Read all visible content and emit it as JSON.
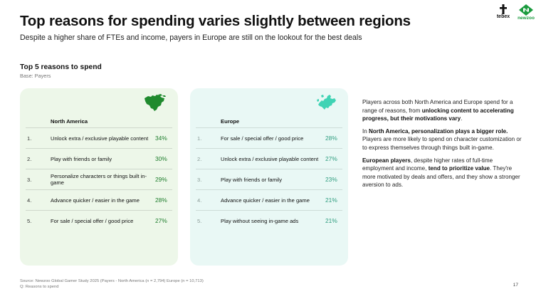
{
  "header": {
    "title": "Top reasons for spending varies slightly between regions",
    "subtitle": "Despite a higher share of FTEs and income, payers in Europe are still on the lookout for the best deals"
  },
  "logos": {
    "tebex": "tebex",
    "newzoo": "newzoo"
  },
  "section": {
    "title": "Top 5 reasons to spend",
    "base": "Base: Payers"
  },
  "north_america": {
    "label": "North America",
    "rows": [
      {
        "num": "1.",
        "reason": "Unlock extra / exclusive playable content",
        "pct": "34%"
      },
      {
        "num": "2.",
        "reason": "Play with friends or family",
        "pct": "30%"
      },
      {
        "num": "3.",
        "reason": "Personalize characters or things built in-game",
        "pct": "29%"
      },
      {
        "num": "4.",
        "reason": "Advance quicker / easier in the game",
        "pct": "28%"
      },
      {
        "num": "5.",
        "reason": "For sale / special offer / good price",
        "pct": "27%"
      }
    ]
  },
  "europe": {
    "label": "Europe",
    "rows": [
      {
        "num": "1.",
        "reason": "For sale / special offer / good price",
        "pct": "28%"
      },
      {
        "num": "2.",
        "reason": "Unlock extra / exclusive playable content",
        "pct": "27%"
      },
      {
        "num": "3.",
        "reason": "Play with friends or family",
        "pct": "23%"
      },
      {
        "num": "4.",
        "reason": "Advance quicker / easier in the game",
        "pct": "21%"
      },
      {
        "num": "5.",
        "reason": "Play without seeing in-game ads",
        "pct": "21%"
      }
    ]
  },
  "notes": {
    "p1_a": "Players across both North America and Europe spend for a range of reasons, from ",
    "p1_b": "unlocking content to accelerating progress, but their motivations vary",
    "p1_c": ".",
    "p2_a": "In ",
    "p2_b": "North America, personalization plays a bigger role.",
    "p2_c": " Players are more likely to spend on character customization or to express themselves through things built in-game.",
    "p3_a": "European players",
    "p3_b": ", despite higher rates of full-time employment and income, ",
    "p3_c": "tend to prioritize value",
    "p3_d": ". They're more motivated by deals and offers, and they show a stronger aversion to ads."
  },
  "footer": {
    "source": "Source: Newzoo Global Gamer Study 2025 (Payers - North America (n = 2,794) Europe (n = 10,713)",
    "question": "Q: Reasons to spend"
  },
  "page_number": "17",
  "colors": {
    "na_panel": "#edf7e9",
    "eu_panel": "#e9f8f5",
    "na_map": "#1f8a2e",
    "eu_map": "#3fd3b4",
    "newzoo_green": "#1b9b3e"
  }
}
